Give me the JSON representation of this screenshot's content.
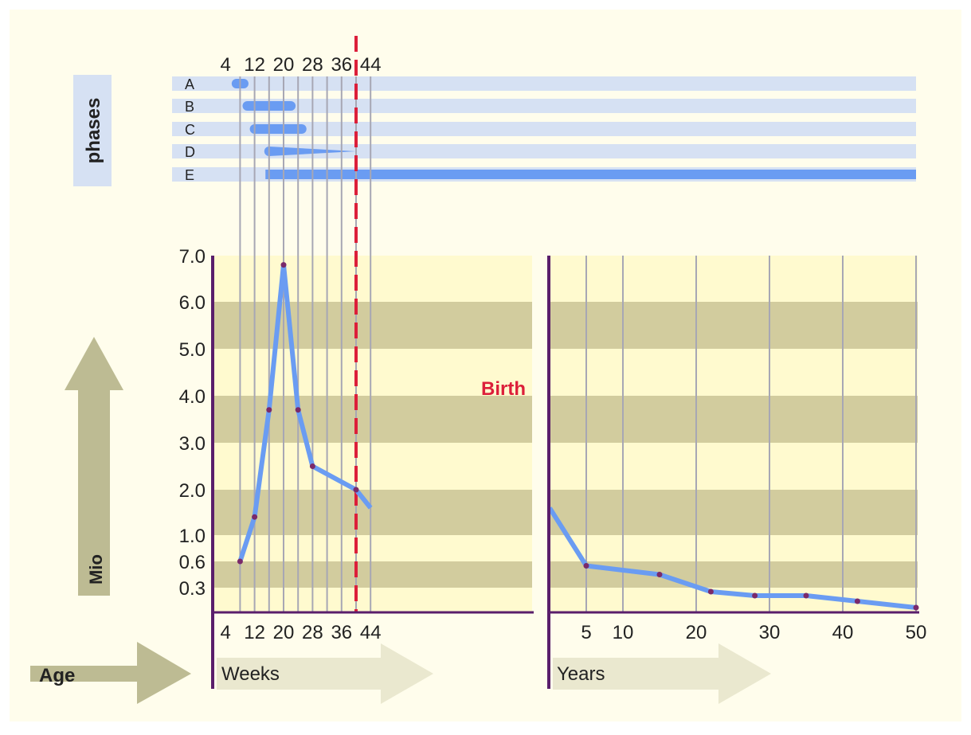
{
  "phases": {
    "title": "phases",
    "rows": [
      {
        "label": "A",
        "start": 7,
        "end": 9,
        "shape": "bar"
      },
      {
        "label": "B",
        "start": 10,
        "end": 22,
        "shape": "bar"
      },
      {
        "label": "C",
        "start": 12,
        "end": 25,
        "shape": "bar"
      },
      {
        "label": "D",
        "start": 16,
        "end": 40,
        "shape": "taper"
      },
      {
        "label": "E",
        "start": 15,
        "end": null,
        "shape": "bar"
      }
    ],
    "top_ticks": [
      "4",
      "12",
      "20",
      "28",
      "36",
      "44"
    ]
  },
  "birth_label": "Birth",
  "y_axis": {
    "arrow_label": "Mio",
    "ticks": [
      "7.0",
      "6.0",
      "5.0",
      "4.0",
      "3.0",
      "2.0",
      "1.0",
      "0.6",
      "0.3"
    ]
  },
  "age": {
    "label": "Age",
    "weeks_label": "Weeks",
    "years_label": "Years",
    "week_ticks": [
      "4",
      "12",
      "20",
      "28",
      "36",
      "44"
    ],
    "year_ticks": [
      "5",
      "10",
      "20",
      "30",
      "40",
      "50"
    ]
  },
  "chart_data": {
    "type": "line",
    "x_label": "Age",
    "y_label": "Mio",
    "y_tick_values": [
      7.0,
      6.0,
      5.0,
      4.0,
      3.0,
      2.0,
      1.0,
      0.6,
      0.3
    ],
    "birth_week": 40,
    "series": [
      {
        "unit": "Weeks",
        "x": [
          8,
          12,
          16,
          20,
          24,
          28,
          40,
          44
        ],
        "y": [
          0.6,
          1.4,
          3.7,
          6.8,
          3.7,
          2.5,
          2.0,
          1.6
        ]
      },
      {
        "unit": "Years",
        "x": [
          0,
          5,
          15,
          22,
          28,
          35,
          42,
          50
        ],
        "y": [
          1.6,
          0.55,
          0.45,
          0.25,
          0.2,
          0.2,
          0.13,
          0.05
        ]
      }
    ],
    "colors": {
      "line": "#6a9cf2",
      "birth": "#dc1f3a",
      "band_light": "#fffacf",
      "band_dark": "#d2cc9e",
      "arrow": "#bdbb93",
      "phase_row": "#d6e1f3",
      "page": "#fffdec"
    }
  }
}
